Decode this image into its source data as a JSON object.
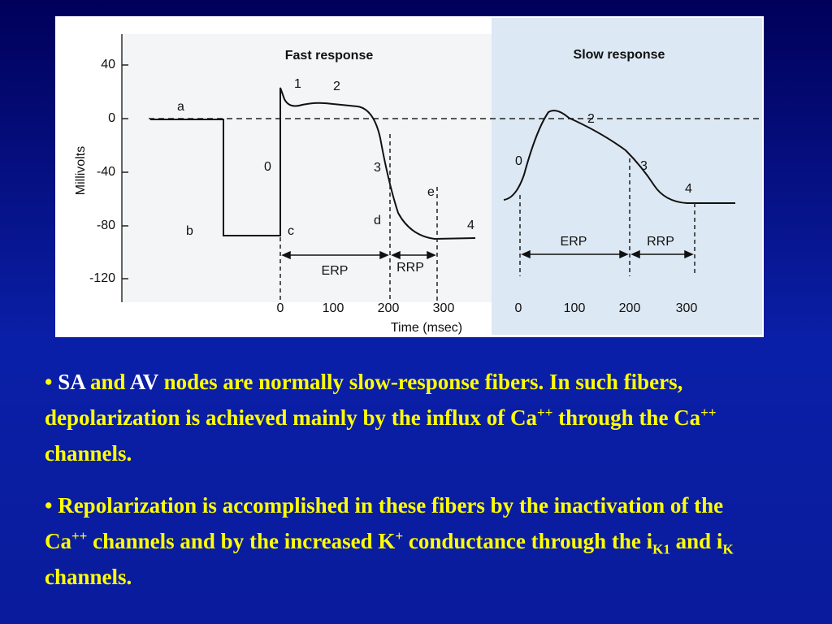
{
  "figure": {
    "y_axis_label": "Millivolts",
    "x_axis_label": "Time (msec)",
    "yticks": [
      "40",
      "0",
      "-40",
      "-80",
      "-120"
    ],
    "fast": {
      "title": "Fast response",
      "xticks": [
        "0",
        "100",
        "200",
        "300"
      ],
      "labels": [
        "a",
        "b",
        "c",
        "0",
        "1",
        "2",
        "3",
        "d",
        "e",
        "4"
      ],
      "erp": "ERP",
      "rrp": "RRP"
    },
    "slow": {
      "title": "Slow response",
      "xticks": [
        "0",
        "100",
        "200",
        "300"
      ],
      "labels": [
        "0",
        "2",
        "3",
        "4"
      ],
      "erp": "ERP",
      "rrp": "RRP"
    }
  },
  "bullets": [
    [
      {
        "text": "• "
      },
      {
        "text": "SA",
        "color": "white"
      },
      {
        "text": " and "
      },
      {
        "text": "AV",
        "color": "white"
      },
      {
        "text": " nodes are normally slow-response fibers. In such fibers, depolarization is achieved mainly by the influx of Ca"
      },
      {
        "text": "++",
        "style": "sup"
      },
      {
        "text": " through the Ca"
      },
      {
        "text": "++",
        "style": "sup"
      },
      {
        "text": " channels."
      }
    ],
    [
      {
        "text": "• Repolarization is accomplished in these fibers by the inactivation of the Ca"
      },
      {
        "text": "++",
        "style": "sup"
      },
      {
        "text": " channels and by the increased K"
      },
      {
        "text": "+",
        "style": "sup"
      },
      {
        "text": " conductance through the i"
      },
      {
        "text": "K1",
        "style": "sub"
      },
      {
        "text": " and i"
      },
      {
        "text": "K",
        "style": "sub"
      },
      {
        "text": " channels."
      }
    ]
  ]
}
